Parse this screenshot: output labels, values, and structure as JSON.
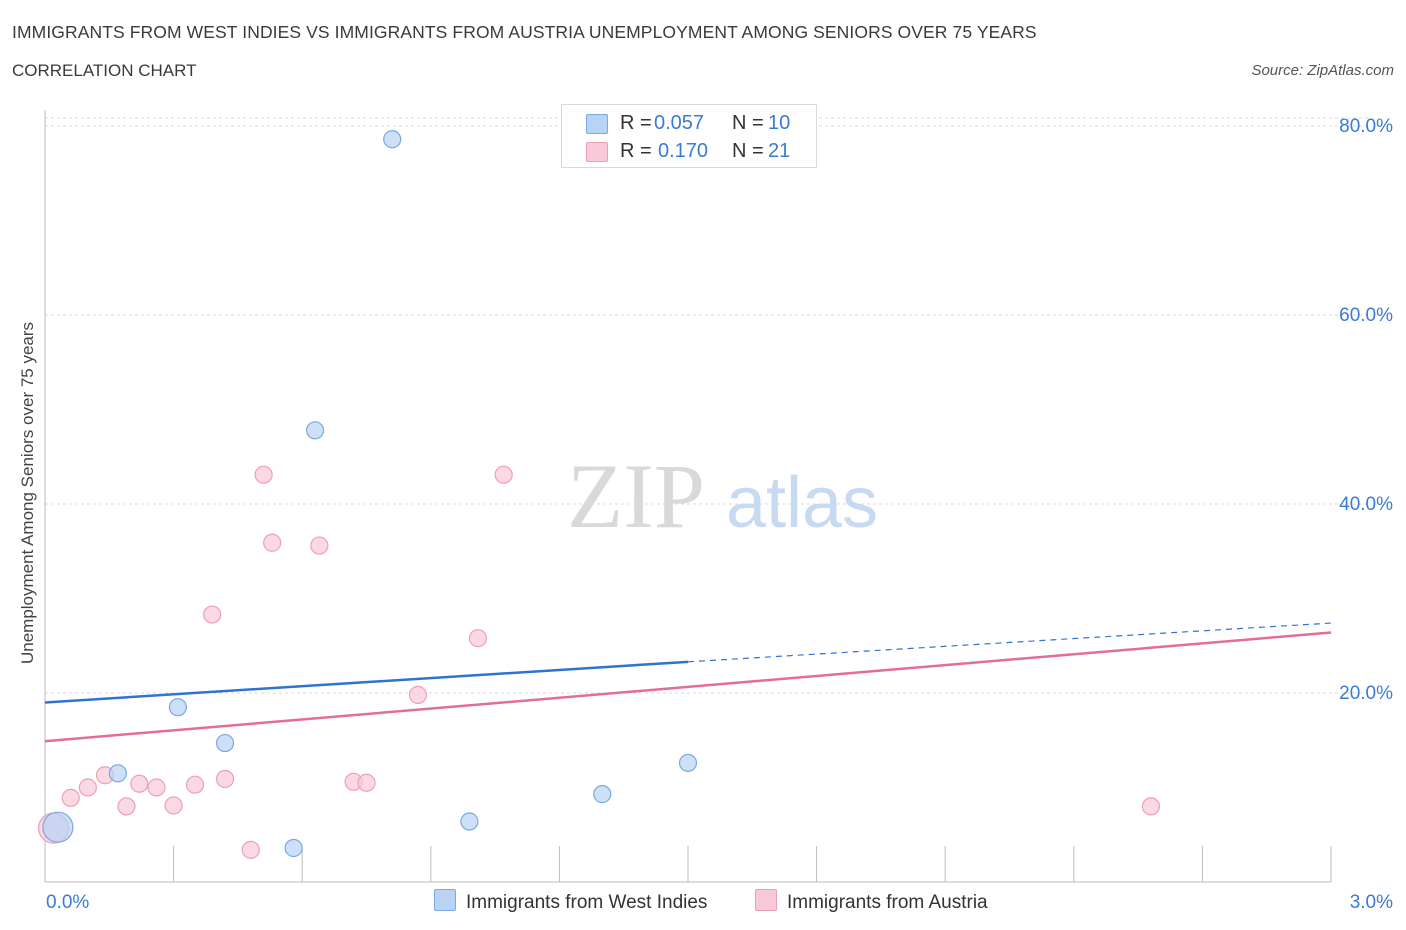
{
  "title": "IMMIGRANTS FROM WEST INDIES VS IMMIGRANTS FROM AUSTRIA UNEMPLOYMENT AMONG SENIORS OVER 75 YEARS",
  "subtitle": "CORRELATION CHART",
  "source": "Source: ZipAtlas.com",
  "watermark": {
    "zip": "ZIP",
    "atlas": "atlas"
  },
  "legend": {
    "r_label": "R =",
    "n_label": "N =",
    "series": [
      {
        "r": "0.057",
        "n": "10"
      },
      {
        "r": "0.170",
        "n": "21"
      }
    ]
  },
  "colors": {
    "blue_fill": "#b8d3f3",
    "blue_stroke": "#7aa8e0",
    "blue_line": "#2f74d0",
    "pink_fill": "#f8c9d8",
    "pink_stroke": "#eba0b8",
    "pink_line": "#e36d96",
    "tick_text": "#3a7bd5",
    "grid": "#d9d9d9"
  },
  "chart_data": {
    "type": "scatter",
    "title": "IMMIGRANTS FROM WEST INDIES VS IMMIGRANTS FROM AUSTRIA UNEMPLOYMENT AMONG SENIORS OVER 75 YEARS",
    "xlabel": "",
    "ylabel": "Unemployment Among Seniors over 75 years",
    "xlim": [
      0,
      3.0
    ],
    "ylim": [
      0,
      80
    ],
    "x_tick_labels": [
      "0.0%",
      "3.0%"
    ],
    "y_ticks": [
      {
        "value": 20,
        "label": "20.0%"
      },
      {
        "value": 40,
        "label": "40.0%"
      },
      {
        "value": 60,
        "label": "60.0%"
      },
      {
        "value": 80,
        "label": "80.0%"
      }
    ],
    "series": [
      {
        "name": "Immigrants from West Indies",
        "color_key": "blue",
        "points": [
          {
            "x": 0.03,
            "y": 5.8,
            "size": 3
          },
          {
            "x": 0.17,
            "y": 11.5
          },
          {
            "x": 0.31,
            "y": 18.5
          },
          {
            "x": 0.42,
            "y": 14.7
          },
          {
            "x": 0.58,
            "y": 3.6
          },
          {
            "x": 0.63,
            "y": 47.8
          },
          {
            "x": 0.81,
            "y": 78.6
          },
          {
            "x": 0.99,
            "y": 6.4
          },
          {
            "x": 1.3,
            "y": 9.3
          },
          {
            "x": 1.5,
            "y": 12.6
          }
        ],
        "trend": {
          "x0": 0.0,
          "y0": 19.0,
          "x1": 1.5,
          "y1": 23.3,
          "x_dash_end": 3.0,
          "y_dash_end": 27.4
        }
      },
      {
        "name": "Immigrants from Austria",
        "color_key": "pink",
        "points": [
          {
            "x": 0.02,
            "y": 5.7,
            "size": 3
          },
          {
            "x": 0.06,
            "y": 8.9
          },
          {
            "x": 0.1,
            "y": 10.0
          },
          {
            "x": 0.14,
            "y": 11.3
          },
          {
            "x": 0.19,
            "y": 8.0
          },
          {
            "x": 0.22,
            "y": 10.4
          },
          {
            "x": 0.26,
            "y": 10.0
          },
          {
            "x": 0.3,
            "y": 8.1
          },
          {
            "x": 0.35,
            "y": 10.3
          },
          {
            "x": 0.39,
            "y": 28.3
          },
          {
            "x": 0.42,
            "y": 10.9
          },
          {
            "x": 0.48,
            "y": 3.4
          },
          {
            "x": 0.51,
            "y": 43.1
          },
          {
            "x": 0.53,
            "y": 35.9
          },
          {
            "x": 0.64,
            "y": 35.6
          },
          {
            "x": 0.72,
            "y": 10.6
          },
          {
            "x": 0.75,
            "y": 10.5
          },
          {
            "x": 0.87,
            "y": 19.8
          },
          {
            "x": 1.01,
            "y": 25.8
          },
          {
            "x": 1.07,
            "y": 43.1
          },
          {
            "x": 2.58,
            "y": 8.0
          }
        ],
        "trend": {
          "x0": 0.0,
          "y0": 14.9,
          "x1": 3.0,
          "y1": 26.4
        }
      }
    ],
    "legend_position": "bottom-center"
  }
}
